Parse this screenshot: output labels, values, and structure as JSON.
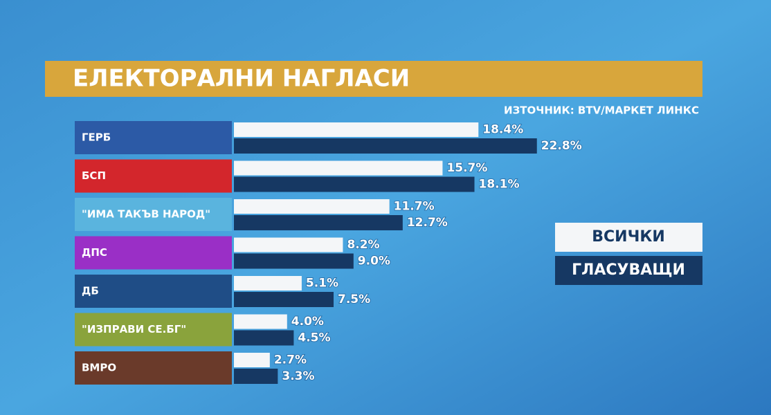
{
  "chart_data": {
    "type": "bar",
    "orientation": "horizontal",
    "title": "ЕЛЕКТОРАЛНИ НАГЛАСИ",
    "source": "ИЗТОЧНИК: BTV/МАРКЕТ ЛИНКС",
    "categories": [
      "ГЕРБ",
      "БСП",
      "\"ИМА ТАКЪВ НАРОД\"",
      "ДПС",
      "ДБ",
      "\"ИЗПРАВИ СЕ.БГ\"",
      "ВМРО"
    ],
    "category_colors": [
      "#2c5aa6",
      "#d3262c",
      "#5ab4de",
      "#9a2fc6",
      "#1f4d86",
      "#8aa33c",
      "#6a3a2a"
    ],
    "series": [
      {
        "name": "ВСИЧКИ",
        "color": "#f4f6f8",
        "values": [
          18.4,
          15.7,
          11.7,
          8.2,
          5.1,
          4.0,
          2.7
        ],
        "value_labels": [
          "18.4%",
          "15.7%",
          "11.7%",
          "8.2%",
          "5.1%",
          "4.0%",
          "2.7%"
        ]
      },
      {
        "name": "ГЛАСУВАЩИ",
        "color": "#163863",
        "values": [
          22.8,
          18.1,
          12.7,
          9.0,
          7.5,
          4.5,
          3.3
        ],
        "value_labels": [
          "22.8%",
          "18.1%",
          "12.7%",
          "9.0%",
          "7.5%",
          "4.5%",
          "3.3%"
        ]
      }
    ]
  }
}
